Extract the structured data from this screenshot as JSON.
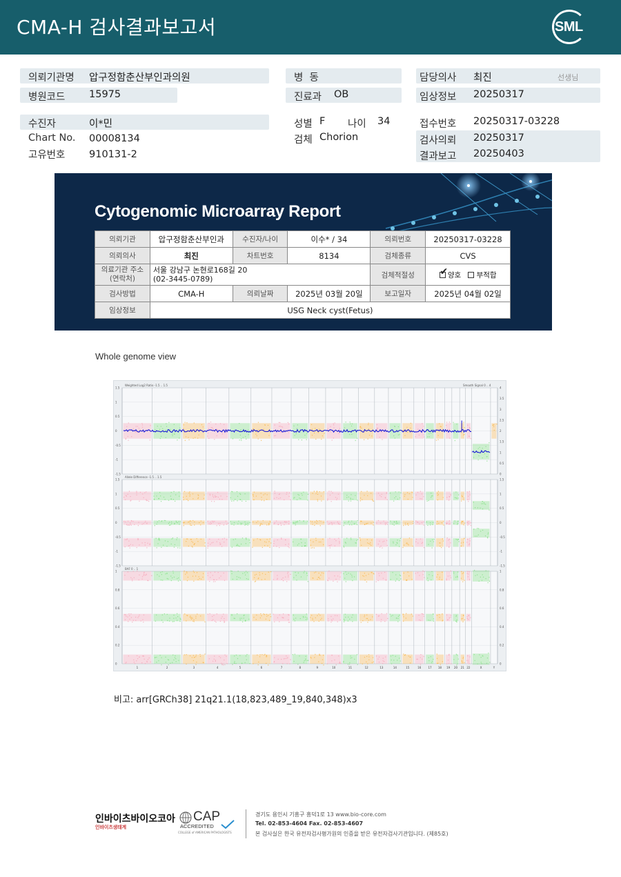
{
  "header": {
    "title": "CMA-H 검사결과보고서",
    "logo_text": "SML"
  },
  "info": {
    "hospital_label": "의뢰기관명",
    "hospital_value": "압구정함춘산부인과의원",
    "hospital_code_label": "병원코드",
    "hospital_code_value": "15975",
    "ward_label": "병  동",
    "dept_label": "진료과",
    "dept_value": "OB",
    "doctor_label": "담당의사",
    "doctor_value": "최진",
    "doctor_suffix": "선생님",
    "clinical_label": "임상정보",
    "clinical_value": "20250317",
    "patient_label": "수진자",
    "patient_value": "이*민",
    "chart_label": "Chart No.",
    "chart_value": "00008134",
    "uid_label": "고유번호",
    "uid_value": "910131-2",
    "sex_label": "성별",
    "sex_value": "F",
    "age_label": "나이",
    "age_value": "34",
    "specimen_label": "검체",
    "specimen_value": "Chorion",
    "receipt_label": "접수번호",
    "receipt_value": "20250317-03228",
    "request_label": "검사의뢰",
    "request_value": "20250317",
    "report_label": "결과보고",
    "report_value": "20250403"
  },
  "report_card": {
    "title": "Cytogenomic Microarray Report",
    "inst_label": "의뢰기관",
    "inst_value": "압구정함춘산부인과",
    "patient_label": "수진자/나이",
    "patient_value": "이수* / 34",
    "req_no_label": "의뢰번호",
    "req_no_value": "20250317-03228",
    "doctor_label": "의뢰의사",
    "doctor_value": "최진",
    "chart_label": "차트번호",
    "chart_value": "8134",
    "sample_label": "검체종류",
    "sample_value": "CVS",
    "addr_label_1": "의료기관 주소",
    "addr_label_2": "(연락처)",
    "addr_value_1": "서울 강남구 논현로168길 20",
    "addr_value_2": "(02-3445-0789)",
    "suitability_label": "검체적절성",
    "suit_good": "양호",
    "suit_bad": "부적합",
    "method_label": "검사방법",
    "method_value": "CMA-H",
    "req_date_label": "의뢰날짜",
    "req_date_value": "2025년 03월 20일",
    "rep_date_label": "보고일자",
    "rep_date_value": "2025년 04월 02일",
    "clin_label": "임상정보",
    "clin_value": "USG Neck cyst(Fetus)"
  },
  "genome": {
    "title": "Whole genome view",
    "panel1_label": "Weighted Log2 Ratio  -1.5 .. 1.5",
    "panel1_right": "Smooth Signal  0 .. 4",
    "panel2_label": "Allele Difference  -1.5 .. 1.5",
    "panel3_label": "BAF  0 .. 1",
    "p1_left_ticks": [
      "1.5",
      "1",
      "0.5",
      "0",
      "-0.5",
      "-1",
      "-1.5"
    ],
    "p1_right_ticks": [
      "4",
      "3.5",
      "3",
      "2.5",
      "2",
      "1.5",
      "1",
      "0.5",
      "0"
    ],
    "p2_left_ticks": [
      "1.5",
      "1",
      "0.5",
      "0",
      "-0.5",
      "-1",
      "-1.5"
    ],
    "p3_left_ticks": [
      "1",
      "0.8",
      "0.6",
      "0.4",
      "0.2",
      "0"
    ],
    "chromosomes": [
      "1",
      "2",
      "3",
      "4",
      "5",
      "6",
      "7",
      "8",
      "9",
      "10",
      "11",
      "12",
      "13",
      "14",
      "15",
      "16",
      "17",
      "18",
      "19",
      "20",
      "21",
      "22",
      "X",
      "Y"
    ],
    "colors": {
      "pink": "#f6a3b5",
      "green": "#7fe07f",
      "orange": "#f8b547",
      "line": "#1a1ad8"
    }
  },
  "note": "비고: arr[GRCh38] 21q21.1(18,823,489_19,840,348)x3",
  "footer": {
    "company": "인바이츠바이오코아",
    "company_sub": "인바이츠생태계",
    "cap_main": "CAP",
    "cap_sub": "ACCREDITED",
    "cap_small": "COLLEGE of AMERICAN PATHOLOGISTS",
    "address": "경기도 용인시 기흥구 흥덕1로 13    www.bio-core.com",
    "tel": "Tel. 02-853-4604   Fax. 02-853-4607",
    "cert": "본 검사실은 한국 유전자검사평가원의 인증을 받은 유전자검사기관입니다. (제85호)"
  }
}
